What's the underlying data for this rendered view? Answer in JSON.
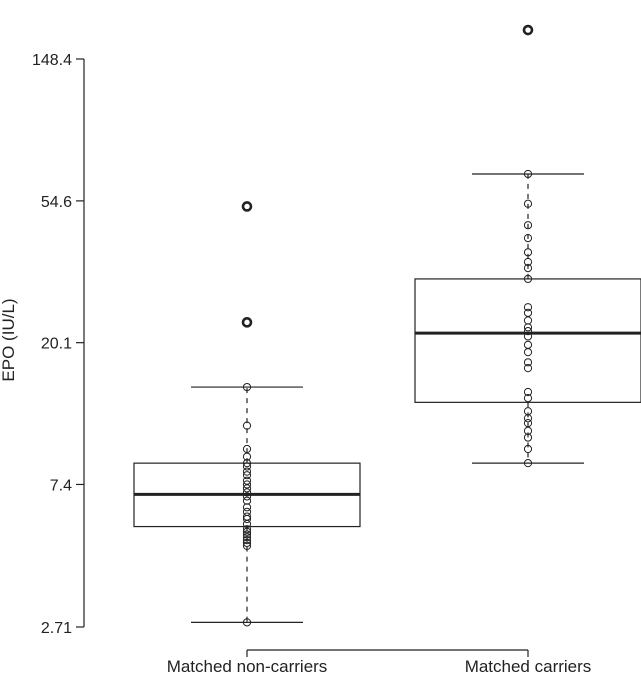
{
  "chart_data": {
    "type": "boxplot",
    "title": "",
    "xlabel": "",
    "ylabel": "EPO (IU/L)",
    "y_scale": "log",
    "y_ticks": [
      2.71,
      7.4,
      20.1,
      54.6,
      148.4
    ],
    "y_tick_labels": [
      "2.71",
      "7.4",
      "20.1",
      "54.6",
      "148.4"
    ],
    "categories": [
      "Matched non-carriers",
      "Matched carriers"
    ],
    "grid": false,
    "legend": "none",
    "groups": [
      {
        "category": "Matched non-carriers",
        "whisker_low": 2.8,
        "q1": 5.5,
        "median": 6.9,
        "q3": 8.6,
        "whisker_high": 14.7,
        "outliers": [
          23.2,
          52.5
        ],
        "points": [
          2.8,
          4.8,
          4.9,
          5.0,
          5.1,
          5.2,
          5.3,
          5.4,
          5.6,
          5.8,
          5.9,
          6.1,
          6.3,
          6.6,
          6.8,
          7.0,
          7.2,
          7.4,
          7.6,
          7.9,
          8.1,
          8.4,
          8.6,
          9.0,
          9.5,
          11.2,
          14.7,
          23.2,
          52.5
        ]
      },
      {
        "category": "Matched carriers",
        "whisker_low": 8.6,
        "q1": 13.2,
        "median": 21.5,
        "q3": 31.5,
        "whisker_high": 66.0,
        "outliers": [
          182.0
        ],
        "points": [
          8.6,
          9.5,
          10.3,
          10.8,
          11.4,
          11.8,
          12.4,
          13.6,
          14.2,
          16.8,
          17.5,
          18.8,
          19.8,
          21.0,
          21.8,
          22.4,
          23.5,
          24.8,
          25.8,
          31.5,
          34.0,
          35.5,
          38.0,
          42.0,
          46.0,
          53.5,
          66.0,
          182.0
        ]
      }
    ]
  }
}
